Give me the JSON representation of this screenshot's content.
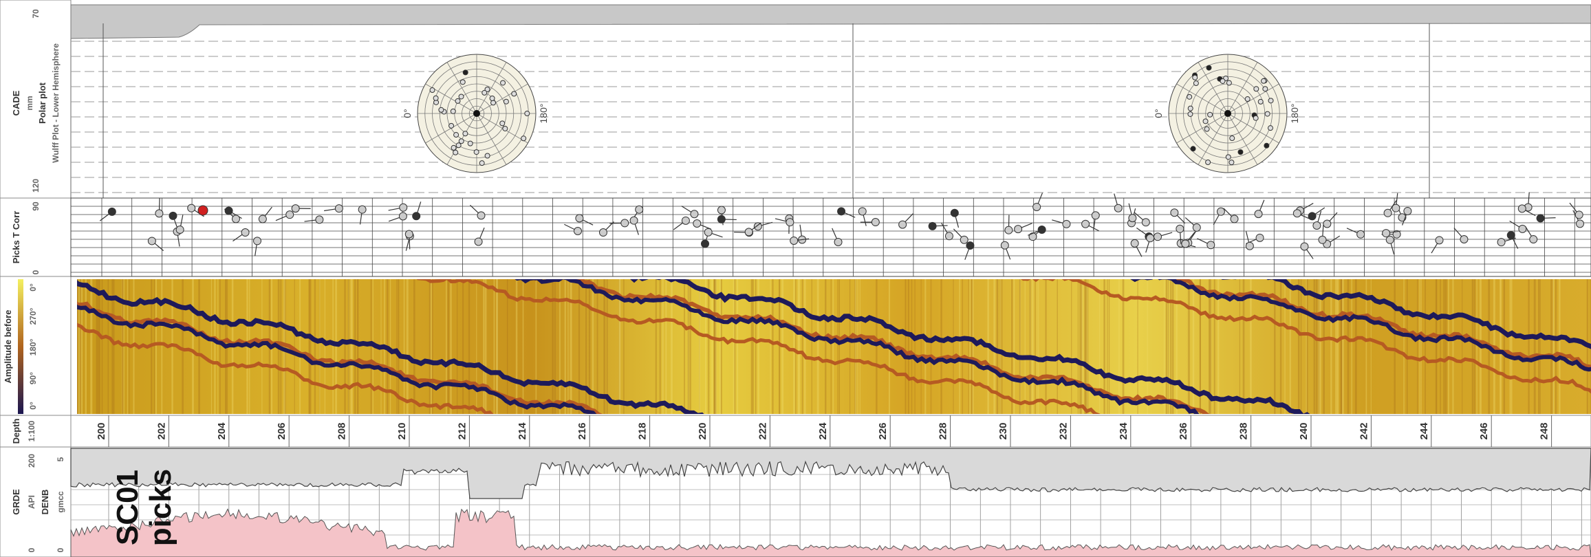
{
  "header_column": {
    "polar_track": {
      "name": "CADE",
      "unit": "mm",
      "title": "Polar plot",
      "subtitle": "Wulff Plot - Lower Hemisphere",
      "scale_top": 70,
      "scale_bottom": 120
    },
    "picks_track": {
      "name": "Picks T Corr",
      "scale_top": 90,
      "scale_bottom": 0
    },
    "amplitude_track": {
      "name": "Amplitude before",
      "ticks": [
        "0°",
        "90°",
        "180°",
        "270°",
        "0°"
      ]
    },
    "depth_track": {
      "name": "Depth",
      "scale": "1:100"
    },
    "curves_track": {
      "names": [
        "GRDE",
        "API",
        "DENB",
        "gmcc"
      ],
      "gr_scale": [
        0,
        200
      ],
      "den_scale": [
        0,
        5
      ]
    }
  },
  "polar_plots": [
    {
      "left": "0°",
      "right": "180°"
    },
    {
      "left": "0°",
      "right": "180°"
    }
  ],
  "depth_ticks": [
    200,
    202,
    204,
    206,
    208,
    210,
    212,
    214,
    216,
    218,
    220,
    222,
    224,
    226,
    228,
    230,
    232,
    234,
    236,
    238,
    240,
    242,
    244,
    246,
    248
  ],
  "annotation": [
    "SC01",
    "picks"
  ]
}
